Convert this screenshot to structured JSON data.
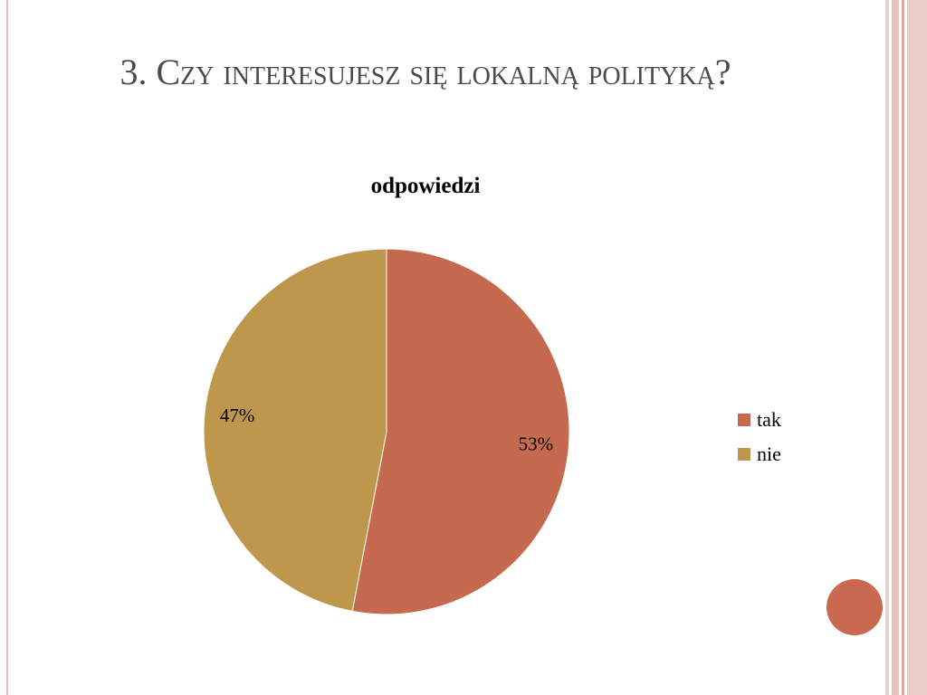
{
  "slide": {
    "title": "3. Czy interesujesz się lokalną polityką?"
  },
  "colors": {
    "tak": "#c5694f",
    "nie": "#be974d",
    "accent_circle": "#c96a50",
    "border_light": "#ead0cb",
    "border_mid": "#d9a8a0"
  },
  "chart_data": {
    "type": "pie",
    "title": "odpowiedzi",
    "categories": [
      "tak",
      "nie"
    ],
    "values": [
      53,
      47
    ],
    "data_labels": [
      "53%",
      "47%"
    ],
    "colors": [
      "#c5694f",
      "#be974d"
    ],
    "legend": {
      "position": "right",
      "entries": [
        "tak",
        "nie"
      ]
    }
  }
}
